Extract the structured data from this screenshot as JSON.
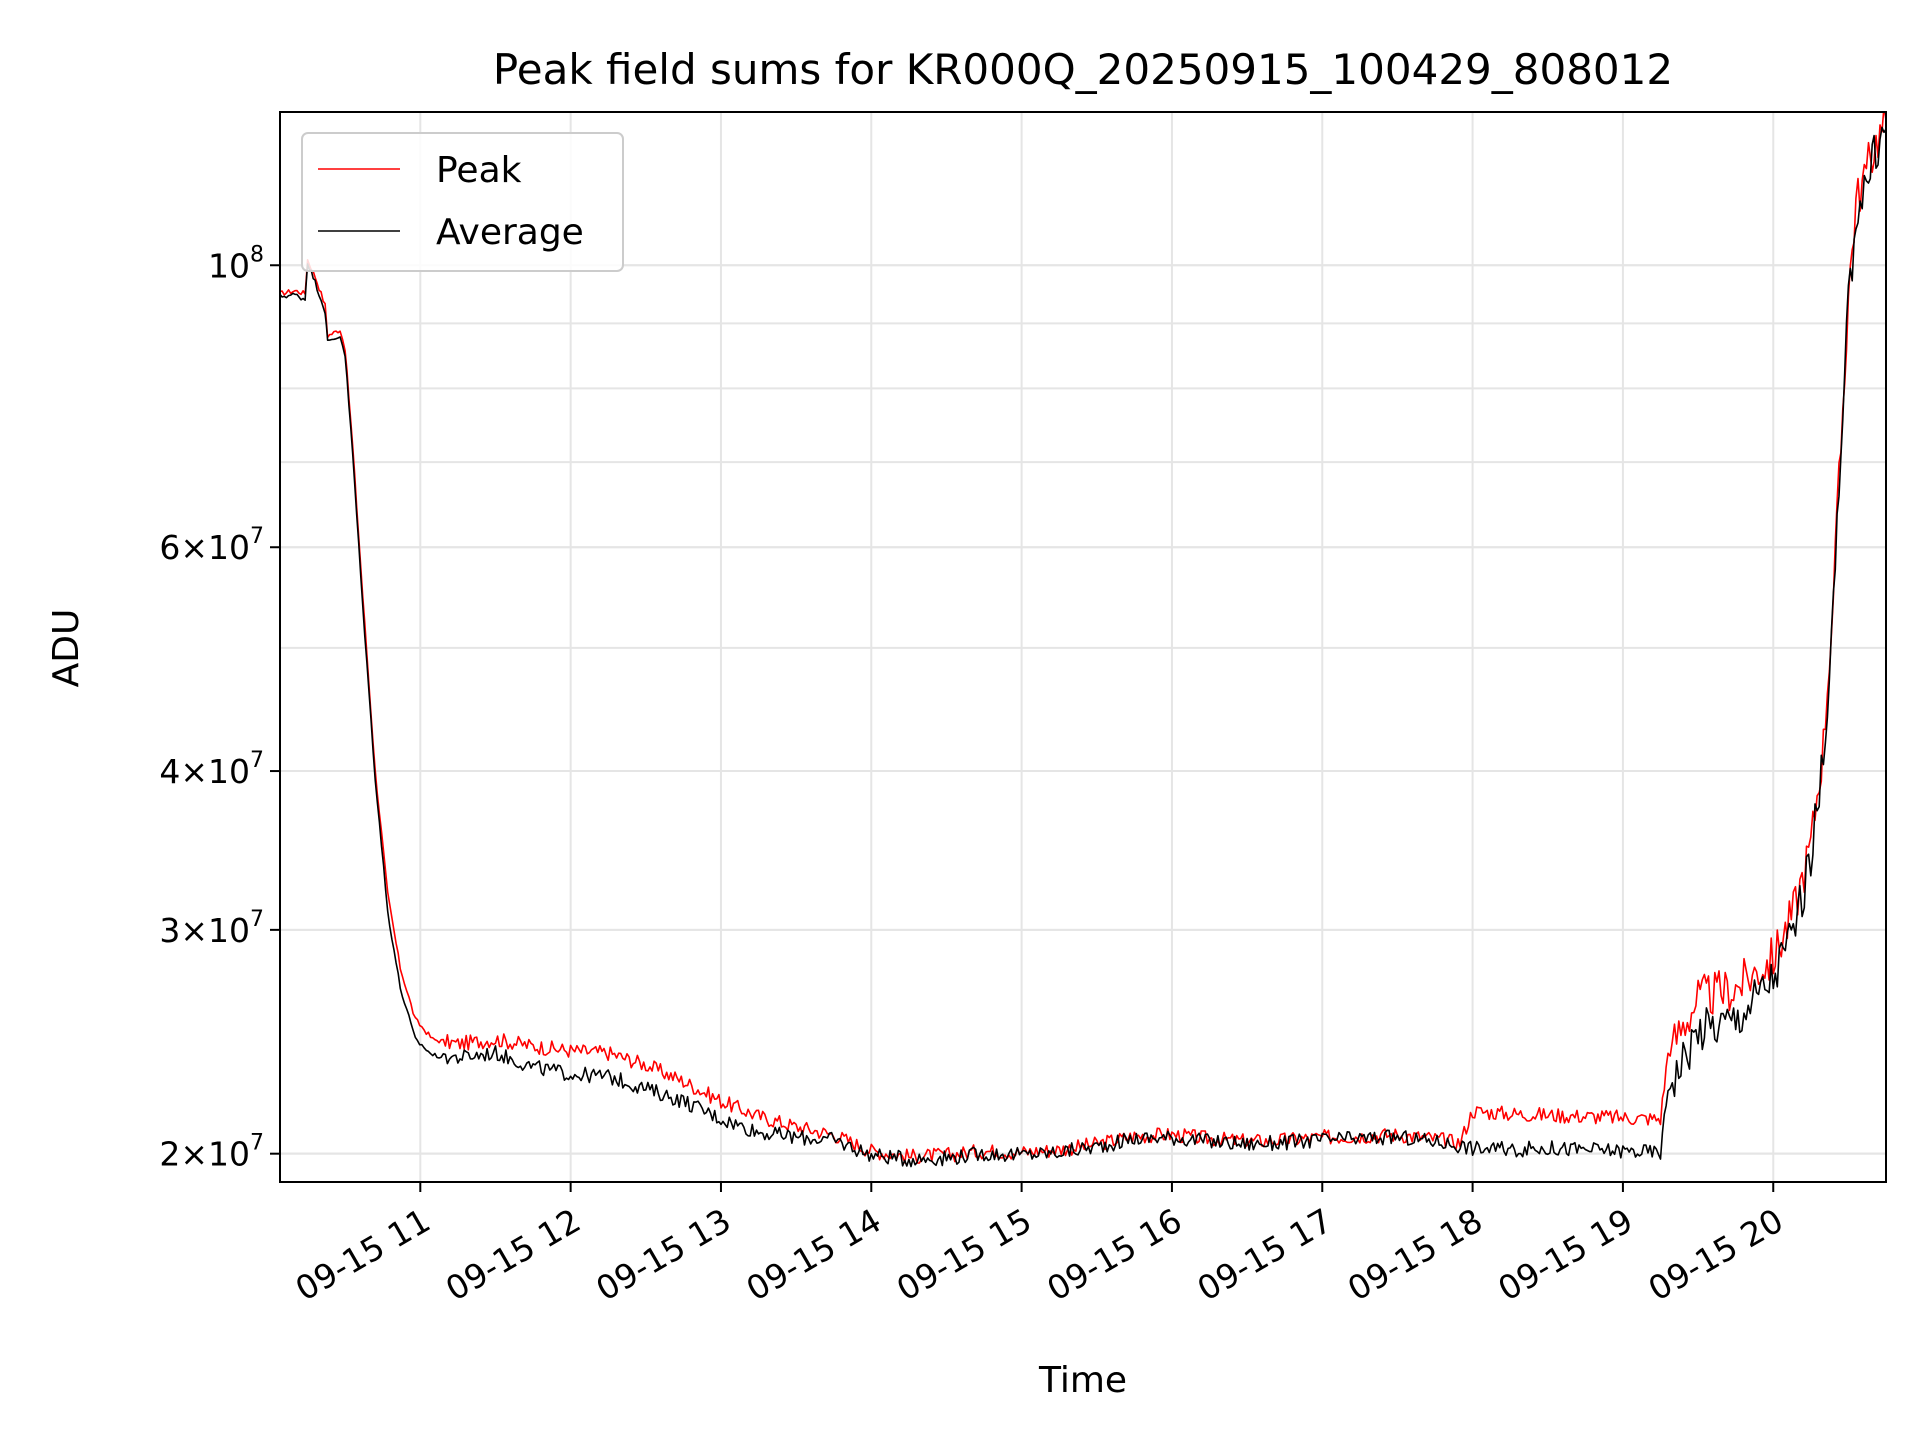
{
  "chart_data": {
    "type": "line",
    "title": "Peak field sums for KR000Q_20250915_100429_808012",
    "xlabel": "Time",
    "ylabel": "ADU",
    "y_scale": "log",
    "grid": true,
    "legend_position": "top-left",
    "x_range": [
      "09-15 10:04",
      "09-15 20:45"
    ],
    "ylim": [
      19000000,
      132000000
    ],
    "x_ticks": [
      "09-15 11",
      "09-15 12",
      "09-15 13",
      "09-15 14",
      "09-15 15",
      "09-15 16",
      "09-15 17",
      "09-15 18",
      "09-15 19",
      "09-15 20"
    ],
    "y_ticks": [
      {
        "value": 20000000,
        "base": "2",
        "exp": "7"
      },
      {
        "value": 30000000,
        "base": "3",
        "exp": "7"
      },
      {
        "value": 40000000,
        "base": "4",
        "exp": "7"
      },
      {
        "value": 60000000,
        "base": "6",
        "exp": "7"
      },
      {
        "value": 100000000,
        "base": "10",
        "exp": "8"
      }
    ],
    "series": [
      {
        "name": "Peak",
        "color": "#ff0000",
        "points": [
          [
            "09-15 10:04",
            95000000
          ],
          [
            "09-15 10:10",
            95500000
          ],
          [
            "09-15 10:14",
            95000000
          ],
          [
            "09-15 10:15",
            101000000
          ],
          [
            "09-15 10:18",
            98000000
          ],
          [
            "09-15 10:22",
            93000000
          ],
          [
            "09-15 10:23",
            88000000
          ],
          [
            "09-15 10:28",
            89000000
          ],
          [
            "09-15 10:30",
            86000000
          ],
          [
            "09-15 10:33",
            72000000
          ],
          [
            "09-15 10:37",
            55000000
          ],
          [
            "09-15 10:42",
            40000000
          ],
          [
            "09-15 10:47",
            32000000
          ],
          [
            "09-15 10:52",
            28000000
          ],
          [
            "09-15 10:58",
            25500000
          ],
          [
            "09-15 11:05",
            24600000
          ],
          [
            "09-15 11:15",
            24400000
          ],
          [
            "09-15 11:30",
            24600000
          ],
          [
            "09-15 11:45",
            24300000
          ],
          [
            "09-15 12:00",
            24100000
          ],
          [
            "09-15 12:15",
            24000000
          ],
          [
            "09-15 12:30",
            23500000
          ],
          [
            "09-15 12:45",
            22800000
          ],
          [
            "09-15 13:00",
            22000000
          ],
          [
            "09-15 13:15",
            21400000
          ],
          [
            "09-15 13:30",
            21000000
          ],
          [
            "09-15 13:45",
            20700000
          ],
          [
            "09-15 14:00",
            20100000
          ],
          [
            "09-15 14:15",
            19900000
          ],
          [
            "09-15 14:30",
            19950000
          ],
          [
            "09-15 14:45",
            20100000
          ],
          [
            "09-15 15:00",
            20050000
          ],
          [
            "09-15 15:15",
            20150000
          ],
          [
            "09-15 15:30",
            20350000
          ],
          [
            "09-15 15:45",
            20650000
          ],
          [
            "09-15 16:00",
            20700000
          ],
          [
            "09-15 16:15",
            20550000
          ],
          [
            "09-15 16:30",
            20450000
          ],
          [
            "09-15 16:45",
            20500000
          ],
          [
            "09-15 17:00",
            20600000
          ],
          [
            "09-15 17:15",
            20650000
          ],
          [
            "09-15 17:30",
            20700000
          ],
          [
            "09-15 17:45",
            20550000
          ],
          [
            "09-15 17:55",
            20400000
          ],
          [
            "09-15 18:00",
            21600000
          ],
          [
            "09-15 18:15",
            21500000
          ],
          [
            "09-15 18:30",
            21450000
          ],
          [
            "09-15 18:45",
            21400000
          ],
          [
            "09-15 19:00",
            21350000
          ],
          [
            "09-15 19:15",
            21300000
          ],
          [
            "09-15 19:18",
            24000000
          ],
          [
            "09-15 19:30",
            26500000
          ],
          [
            "09-15 19:45",
            27000000
          ],
          [
            "09-15 20:00",
            28500000
          ],
          [
            "09-15 20:08",
            31000000
          ],
          [
            "09-15 20:15",
            35000000
          ],
          [
            "09-15 20:20",
            42000000
          ],
          [
            "09-15 20:24",
            55000000
          ],
          [
            "09-15 20:27",
            72000000
          ],
          [
            "09-15 20:30",
            95000000
          ],
          [
            "09-15 20:33",
            112000000
          ],
          [
            "09-15 20:38",
            120000000
          ],
          [
            "09-15 20:41",
            125000000
          ],
          [
            "09-15 20:45",
            130000000
          ]
        ]
      },
      {
        "name": "Average",
        "color": "#000000",
        "points": [
          [
            "09-15 10:04",
            94500000
          ],
          [
            "09-15 10:10",
            94800000
          ],
          [
            "09-15 10:14",
            94000000
          ],
          [
            "09-15 10:15",
            100500000
          ],
          [
            "09-15 10:18",
            97000000
          ],
          [
            "09-15 10:22",
            92000000
          ],
          [
            "09-15 10:23",
            87000000
          ],
          [
            "09-15 10:28",
            88000000
          ],
          [
            "09-15 10:30",
            85000000
          ],
          [
            "09-15 10:33",
            71000000
          ],
          [
            "09-15 10:37",
            54000000
          ],
          [
            "09-15 10:42",
            39500000
          ],
          [
            "09-15 10:47",
            31000000
          ],
          [
            "09-15 10:52",
            27000000
          ],
          [
            "09-15 10:58",
            24600000
          ],
          [
            "09-15 11:05",
            23900000
          ],
          [
            "09-15 11:15",
            23800000
          ],
          [
            "09-15 11:30",
            24000000
          ],
          [
            "09-15 11:45",
            23400000
          ],
          [
            "09-15 12:00",
            23100000
          ],
          [
            "09-15 12:15",
            23000000
          ],
          [
            "09-15 12:30",
            22500000
          ],
          [
            "09-15 12:45",
            22000000
          ],
          [
            "09-15 13:00",
            21300000
          ],
          [
            "09-15 13:15",
            20800000
          ],
          [
            "09-15 13:30",
            20600000
          ],
          [
            "09-15 13:45",
            20500000
          ],
          [
            "09-15 14:00",
            19950000
          ],
          [
            "09-15 14:15",
            19800000
          ],
          [
            "09-15 14:30",
            19850000
          ],
          [
            "09-15 14:45",
            20000000
          ],
          [
            "09-15 15:00",
            19950000
          ],
          [
            "09-15 15:15",
            20050000
          ],
          [
            "09-15 15:30",
            20250000
          ],
          [
            "09-15 15:45",
            20550000
          ],
          [
            "09-15 16:00",
            20600000
          ],
          [
            "09-15 16:15",
            20450000
          ],
          [
            "09-15 16:30",
            20350000
          ],
          [
            "09-15 16:45",
            20400000
          ],
          [
            "09-15 17:00",
            20500000
          ],
          [
            "09-15 17:15",
            20550000
          ],
          [
            "09-15 17:30",
            20600000
          ],
          [
            "09-15 17:45",
            20450000
          ],
          [
            "09-15 17:55",
            20300000
          ],
          [
            "09-15 18:00",
            20200000
          ],
          [
            "09-15 18:15",
            20150000
          ],
          [
            "09-15 18:30",
            20200000
          ],
          [
            "09-15 18:45",
            20150000
          ],
          [
            "09-15 19:00",
            20100000
          ],
          [
            "09-15 19:15",
            20050000
          ],
          [
            "09-15 19:18",
            22500000
          ],
          [
            "09-15 19:30",
            25000000
          ],
          [
            "09-15 19:45",
            25500000
          ],
          [
            "09-15 20:00",
            27500000
          ],
          [
            "09-15 20:08",
            30000000
          ],
          [
            "09-15 20:15",
            34000000
          ],
          [
            "09-15 20:20",
            41000000
          ],
          [
            "09-15 20:24",
            54000000
          ],
          [
            "09-15 20:27",
            70000000
          ],
          [
            "09-15 20:30",
            93000000
          ],
          [
            "09-15 20:33",
            110000000
          ],
          [
            "09-15 20:38",
            118000000
          ],
          [
            "09-15 20:41",
            123000000
          ],
          [
            "09-15 20:45",
            128000000
          ]
        ]
      }
    ]
  }
}
